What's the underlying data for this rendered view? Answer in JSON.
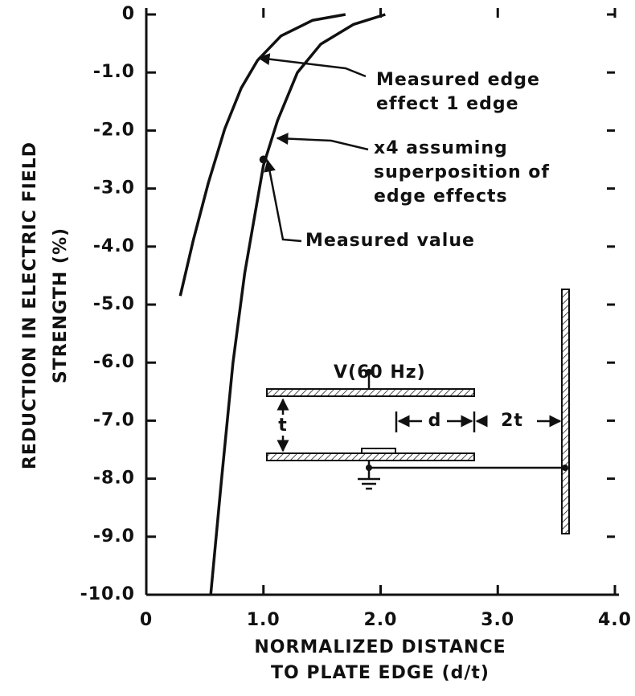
{
  "chart_data": {
    "type": "line",
    "xlabel": [
      "NORMALIZED DISTANCE",
      "TO PLATE EDGE (d/t)"
    ],
    "ylabel": [
      "REDUCTION IN ELECTRIC FIELD",
      "STRENGTH (%)"
    ],
    "xlim": [
      0,
      4
    ],
    "ylim": [
      -10,
      0
    ],
    "xticks": [
      0,
      {
        "value": 1,
        "label": "1.0"
      },
      {
        "value": 2,
        "label": "2.0"
      },
      {
        "value": 3,
        "label": "3.0"
      },
      {
        "value": 4,
        "label": "4.0"
      }
    ],
    "yticks": [
      0,
      {
        "value": -1,
        "label": "-1.0"
      },
      {
        "value": -2,
        "label": "-2.0"
      },
      {
        "value": -3,
        "label": "-3.0"
      },
      {
        "value": -4,
        "label": "-4.0"
      },
      {
        "value": -5,
        "label": "-5.0"
      },
      {
        "value": -6,
        "label": "-6.0"
      },
      {
        "value": -7,
        "label": "-7.0"
      },
      {
        "value": -8,
        "label": "-8.0"
      },
      {
        "value": -9,
        "label": "-9.0"
      },
      {
        "value": -10,
        "label": "-10.0"
      }
    ],
    "series": [
      {
        "name": [
          "Measured edge",
          "effect 1 edge"
        ],
        "color": "#111111",
        "x": [
          0.29,
          0.4,
          0.53,
          0.67,
          0.81,
          0.95,
          1.15,
          1.42,
          1.7
        ],
        "values": [
          -4.85,
          -3.9,
          -2.9,
          -1.97,
          -1.27,
          -0.79,
          -0.37,
          -0.1,
          0
        ]
      },
      {
        "name": [
          "x4 assuming",
          "superposition of",
          "edge effects"
        ],
        "color": "#111111",
        "x": [
          0.55,
          0.64,
          0.74,
          0.84,
          1.0,
          1.12,
          1.29,
          1.49,
          1.77,
          2.04
        ],
        "values": [
          -10,
          -8.06,
          -6.0,
          -4.46,
          -2.6,
          -1.83,
          -1.0,
          -0.51,
          -0.17,
          0
        ]
      }
    ],
    "point": {
      "name": "Measured value",
      "x": 1.0,
      "y": -2.5
    },
    "diagram": {
      "voltage": "V(60 Hz)",
      "gap": "t",
      "distance": "d",
      "offset": "2t"
    }
  }
}
